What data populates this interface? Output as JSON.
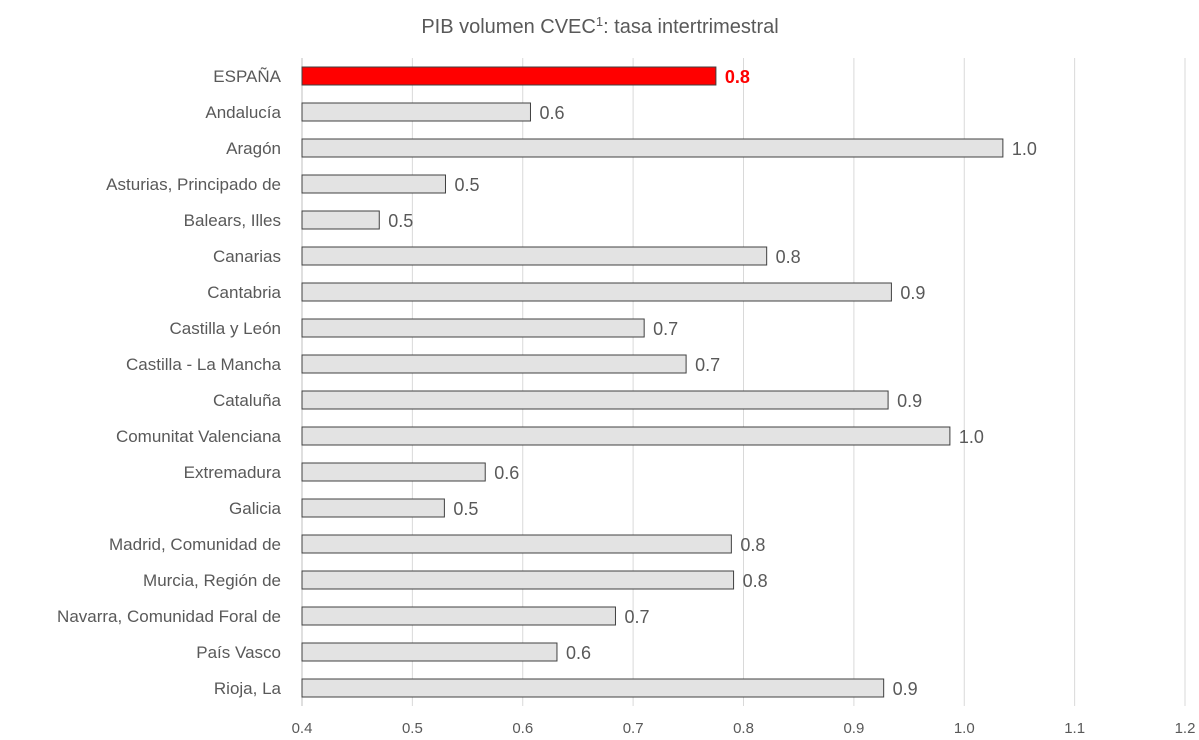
{
  "chart_data": {
    "type": "bar",
    "orientation": "horizontal",
    "title_main": "PIB volumen CVEC",
    "title_sup": "1",
    "title_rest": ": tasa intertrimestral",
    "categories": [
      "ESPAÑA",
      "Andalucía",
      "Aragón",
      "Asturias, Principado de",
      "Balears, Illes",
      "Canarias",
      "Cantabria",
      "Castilla y León",
      "Castilla - La Mancha",
      "Cataluña",
      "Comunitat Valenciana",
      "Extremadura",
      "Galicia",
      "Madrid, Comunidad de",
      "Murcia, Región de",
      "Navarra, Comunidad Foral de",
      "País Vasco",
      "Rioja, La"
    ],
    "values": [
      0.775,
      0.607,
      1.035,
      0.53,
      0.47,
      0.821,
      0.934,
      0.71,
      0.748,
      0.931,
      0.987,
      0.566,
      0.529,
      0.789,
      0.791,
      0.684,
      0.631,
      0.927
    ],
    "value_labels": [
      "0.8",
      "0.6",
      "1.0",
      "0.5",
      "0.5",
      "0.8",
      "0.9",
      "0.7",
      "0.7",
      "0.9",
      "1.0",
      "0.6",
      "0.5",
      "0.8",
      "0.8",
      "0.7",
      "0.6",
      "0.9"
    ],
    "xlim": [
      0.4,
      1.2
    ],
    "xticks": [
      "0.4",
      "0.5",
      "0.6",
      "0.7",
      "0.8",
      "0.9",
      "1.0",
      "1.1",
      "1.2"
    ],
    "highlight_index": 0,
    "colors": {
      "highlight": "#ff0000",
      "bar": "#e3e3e3",
      "bar_stroke": "#404040"
    },
    "grid": true,
    "legend": false
  }
}
